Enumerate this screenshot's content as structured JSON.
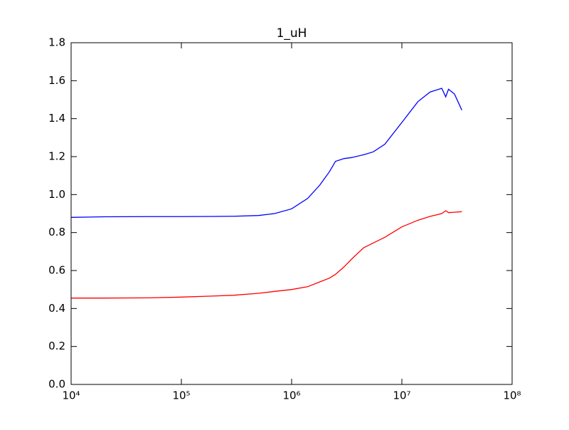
{
  "chart_data": {
    "type": "line",
    "title": "1_uH",
    "x": [
      10000,
      20000,
      50000,
      100000,
      200000,
      300000,
      500000,
      700000,
      1000000,
      1400000,
      1800000,
      2200000,
      2500000,
      3000000,
      3500000,
      4500000,
      5500000,
      7000000,
      10000000,
      14000000,
      18000000,
      23000000,
      25000000,
      26500000,
      30000000,
      35000000
    ],
    "series": [
      {
        "color": "#0000ff",
        "values": [
          0.88,
          0.883,
          0.884,
          0.884,
          0.885,
          0.886,
          0.89,
          0.9,
          0.925,
          0.98,
          1.05,
          1.12,
          1.175,
          1.19,
          1.195,
          1.21,
          1.225,
          1.265,
          1.38,
          1.49,
          1.54,
          1.56,
          1.515,
          1.555,
          1.53,
          1.445
        ]
      },
      {
        "color": "#ff0000",
        "values": [
          0.455,
          0.455,
          0.456,
          0.46,
          0.466,
          0.47,
          0.48,
          0.49,
          0.5,
          0.515,
          0.54,
          0.56,
          0.58,
          0.62,
          0.66,
          0.72,
          0.745,
          0.775,
          0.83,
          0.865,
          0.885,
          0.9,
          0.915,
          0.905,
          0.907,
          0.91
        ]
      }
    ],
    "xscale": "log",
    "xlim": [
      10000,
      100000000
    ],
    "xticks": [
      {
        "value": 10000,
        "label": "10⁴"
      },
      {
        "value": 100000,
        "label": "10⁵"
      },
      {
        "value": 1000000,
        "label": "10⁶"
      },
      {
        "value": 10000000,
        "label": "10⁷"
      },
      {
        "value": 100000000,
        "label": "10⁸"
      }
    ],
    "ylim": [
      0,
      1.8
    ],
    "yticks": [
      {
        "value": 0,
        "label": "0.0"
      },
      0.2,
      0.4,
      0.6,
      0.8,
      {
        "value": 1,
        "label": "1.0"
      },
      1.2,
      1.4,
      1.6,
      1.8
    ]
  }
}
